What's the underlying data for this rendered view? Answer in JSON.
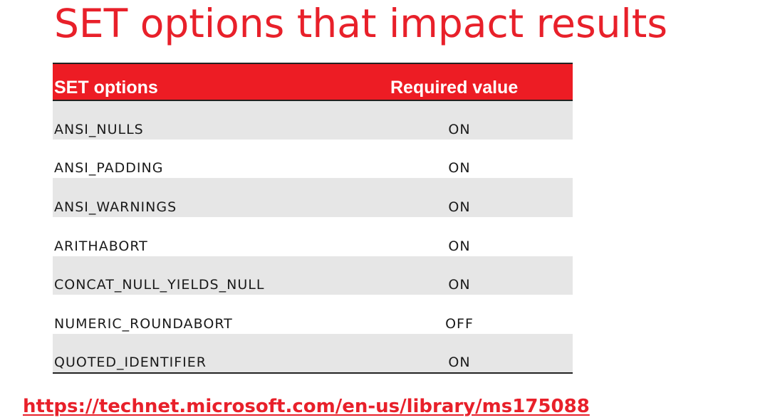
{
  "title": "SET options that impact results",
  "table": {
    "headers": {
      "name": "SET options",
      "value": "Required value"
    },
    "rows": [
      {
        "name": "ANSI_NULLS",
        "value": "ON"
      },
      {
        "name": "ANSI_PADDING",
        "value": "ON"
      },
      {
        "name": "ANSI_WARNINGS",
        "value": "ON"
      },
      {
        "name": "ARITHABORT",
        "value": "ON"
      },
      {
        "name": "CONCAT_NULL_YIELDS_NULL",
        "value": "ON"
      },
      {
        "name": "NUMERIC_ROUNDABORT",
        "value": "OFF"
      },
      {
        "name": "QUOTED_IDENTIFIER",
        "value": "ON"
      }
    ]
  },
  "link": {
    "text": "https://technet.microsoft.com/en-us/library/ms175088"
  },
  "colors": {
    "accent_red": "#e8202a",
    "header_red": "#ed1c24",
    "row_shade": "#e6e6e6"
  }
}
